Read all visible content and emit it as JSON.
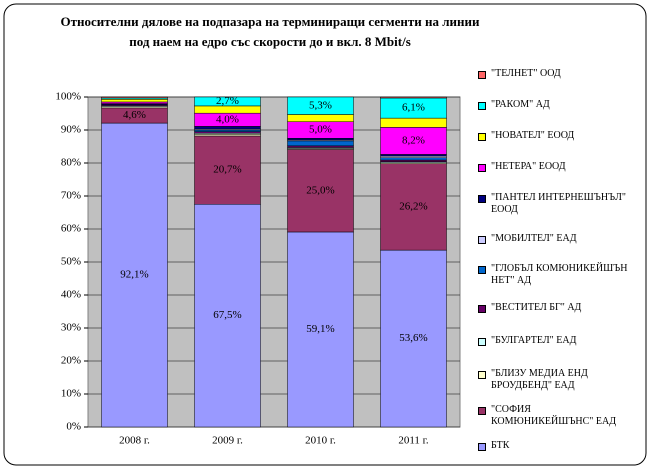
{
  "chart_data": {
    "type": "stacked_bar",
    "title": "Относителни дялове на подпазара на терминиращи сегменти на линии под наем на едро със скорости до и вкл. 8 Mbit/s",
    "categories": [
      "2008 г.",
      "2009 г.",
      "2010 г.",
      "2011 г."
    ],
    "ylim": [
      0,
      100
    ],
    "yticks": [
      {
        "value": 0,
        "label": "0%"
      },
      {
        "value": 10,
        "label": "10%"
      },
      {
        "value": 20,
        "label": "20%"
      },
      {
        "value": 30,
        "label": "30%"
      },
      {
        "value": 40,
        "label": "40%"
      },
      {
        "value": 50,
        "label": "50%"
      },
      {
        "value": 60,
        "label": "60%"
      },
      {
        "value": 70,
        "label": "70%"
      },
      {
        "value": 80,
        "label": "80%"
      },
      {
        "value": 90,
        "label": "90%"
      },
      {
        "value": 100,
        "label": "100%"
      }
    ],
    "series": [
      {
        "name": "\"ТЕЛНЕТ\" ООД",
        "color": "#ff6666",
        "values": [
          0.3,
          0,
          0,
          0.3
        ]
      },
      {
        "name": "\"РАКОМ\" АД",
        "color": "#00ffff",
        "values": [
          0.4,
          2.7,
          5.3,
          6.1
        ],
        "value_labels": [
          null,
          "2,7%",
          "5,3%",
          "6,1%"
        ]
      },
      {
        "name": "\"НОВАТЕЛ\" ЕООД",
        "color": "#ffff00",
        "values": [
          0.8,
          2.2,
          2.2,
          2.8
        ]
      },
      {
        "name": "\"НЕТЕРА\" ЕООД",
        "color": "#ff00ff",
        "values": [
          0.5,
          4.0,
          5.0,
          8.2
        ],
        "value_labels": [
          null,
          "4,0%",
          "5,0%",
          "8,2%"
        ]
      },
      {
        "name": "\"ПАНТЕЛ ИНТЕРНЕШЪНЪЛ\" ЕООД",
        "color": "#000080",
        "values": [
          0.3,
          0.8,
          0.5,
          0.5
        ]
      },
      {
        "name": "\"МОБИЛТЕЛ\" ЕАД",
        "color": "#ccccff",
        "values": [
          0,
          0.3,
          0.3,
          0.5
        ]
      },
      {
        "name": "\"ГЛОБЪЛ КОМЮНИКЕЙШЪН НЕТ\" АД",
        "color": "#0066cc",
        "values": [
          0,
          0.5,
          1.5,
          0.7
        ]
      },
      {
        "name": "\"ВЕСТИТЕЛ БГ\" АД",
        "color": "#660066",
        "values": [
          0.3,
          0.5,
          0.5,
          0.5
        ]
      },
      {
        "name": "\"БУЛГАРТЕЛ\" ЕАД",
        "color": "#ccffff",
        "values": [
          0.3,
          0.3,
          0.3,
          0.3
        ]
      },
      {
        "name": "\"БЛИЗУ МЕДИА ЕНД БРОУДБЕНД\" ЕАД",
        "color": "#ffffcc",
        "values": [
          0.4,
          0.5,
          0.3,
          0.3
        ]
      },
      {
        "name": "\"СОФИЯ КОМЮНИКЕЙШЪНС\" ЕАД",
        "color": "#993366",
        "values": [
          4.6,
          20.7,
          25.0,
          26.2
        ],
        "value_labels": [
          "4,6%",
          "20,7%",
          "25,0%",
          "26,2%"
        ]
      },
      {
        "name": "БТК",
        "color": "#9999ff",
        "values": [
          92.1,
          67.5,
          59.1,
          53.6
        ],
        "value_labels": [
          "92,1%",
          "67,5%",
          "59,1%",
          "53,6%"
        ]
      }
    ]
  }
}
